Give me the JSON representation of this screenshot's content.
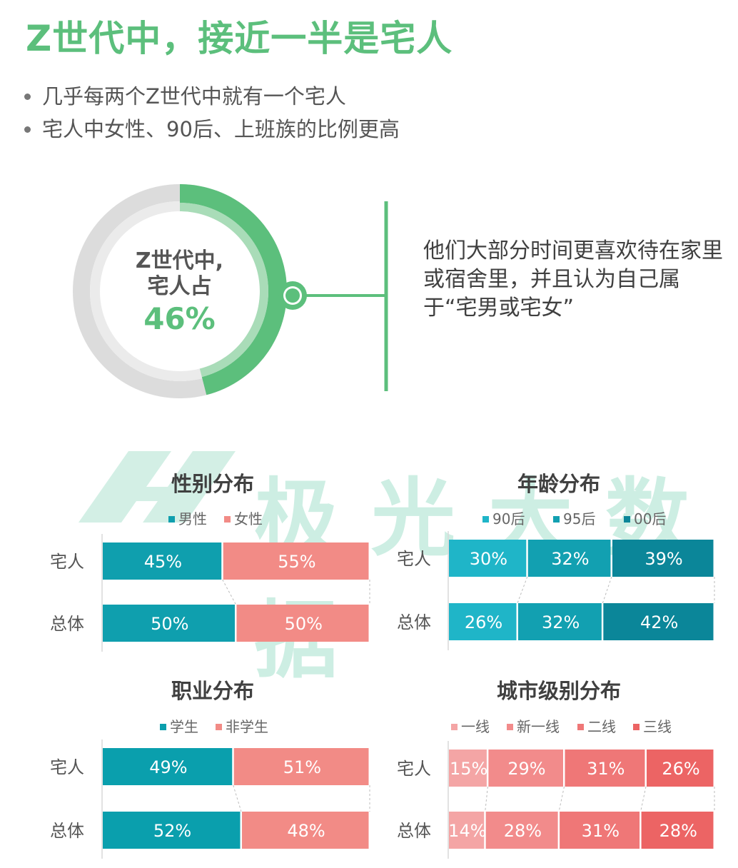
{
  "title": "Z世代中，接近一半是宅人",
  "bullets": [
    "几乎每两个Z世代中就有一个宅人",
    "宅人中女性、90后、上班族的比例更高"
  ],
  "donut": {
    "line1": "Z世代中,",
    "line2": "宅人占",
    "value_label": "46%",
    "value": 46
  },
  "description": "他们大部分时间更喜欢待在家里或宿舍里，并且认为自己属于“宅男或宅女”",
  "watermark": "极光大数据",
  "colors": {
    "green": "#5cbf7c",
    "gray": "#d9d9d9",
    "teal": "#0e9aae",
    "salmon": "#f28b86"
  },
  "chart_data": [
    {
      "type": "bar",
      "stacked": true,
      "orientation": "horizontal",
      "title": "性别分布",
      "categories": [
        "宅人",
        "总体"
      ],
      "series": [
        {
          "name": "男性",
          "values": [
            45,
            50
          ],
          "labels": [
            "45%",
            "50%"
          ],
          "color": "#0f9fae"
        },
        {
          "name": "女性",
          "values": [
            55,
            50
          ],
          "labels": [
            "55%",
            "50%"
          ],
          "color": "#f28b86"
        }
      ]
    },
    {
      "type": "bar",
      "stacked": true,
      "orientation": "horizontal",
      "title": "年龄分布",
      "categories": [
        "宅人",
        "总体"
      ],
      "series": [
        {
          "name": "90后",
          "values": [
            30,
            26
          ],
          "labels": [
            "30%",
            "26%"
          ],
          "color": "#1fb5c8"
        },
        {
          "name": "95后",
          "values": [
            32,
            32
          ],
          "labels": [
            "32%",
            "32%"
          ],
          "color": "#12a0b1"
        },
        {
          "name": "00后",
          "values": [
            39,
            42
          ],
          "labels": [
            "39%",
            "42%"
          ],
          "color": "#0b8699"
        }
      ]
    },
    {
      "type": "bar",
      "stacked": true,
      "orientation": "horizontal",
      "title": "职业分布",
      "categories": [
        "宅人",
        "总体"
      ],
      "series": [
        {
          "name": "学生",
          "values": [
            49,
            52
          ],
          "labels": [
            "49%",
            "52%"
          ],
          "color": "#0a9fad"
        },
        {
          "name": "非学生",
          "values": [
            51,
            48
          ],
          "labels": [
            "51%",
            "48%"
          ],
          "color": "#f28b86"
        }
      ]
    },
    {
      "type": "bar",
      "stacked": true,
      "orientation": "horizontal",
      "title": "城市级别分布",
      "categories": [
        "宅人",
        "总体"
      ],
      "series": [
        {
          "name": "一线",
          "values": [
            15,
            14
          ],
          "labels": [
            "15%",
            "14%"
          ],
          "color": "#f4a5a5"
        },
        {
          "name": "新一线",
          "values": [
            29,
            28
          ],
          "labels": [
            "29%",
            "28%"
          ],
          "color": "#f28b8b"
        },
        {
          "name": "二线",
          "values": [
            31,
            31
          ],
          "labels": [
            "31%",
            "31%"
          ],
          "color": "#ef7777"
        },
        {
          "name": "三线",
          "values": [
            26,
            28
          ],
          "labels": [
            "26%",
            "28%"
          ],
          "color": "#ec6464"
        }
      ]
    }
  ]
}
